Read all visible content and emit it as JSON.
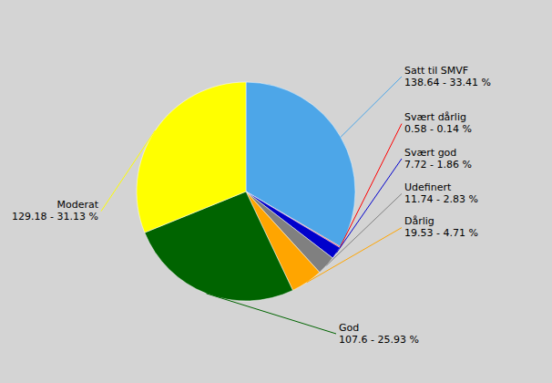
{
  "chart_data": {
    "type": "pie",
    "categories": [
      "Satt til SMVF\n138.64 - 33.41 %",
      "Svært dårlig\n0.58 - 0.14 %",
      "Svært god\n7.72 - 1.86 %",
      "Udefinert\n11.74 - 2.83 %",
      "Dårlig\n19.53 - 4.71 %",
      "God\n107.6 - 25.93 %",
      "Moderat\n129.18 - 31.13 %"
    ],
    "values": [
      138.64,
      0.58,
      7.72,
      11.74,
      19.53,
      107.6,
      129.18
    ],
    "colors": [
      "#4da6e8",
      "#ff0000",
      "#0000cc",
      "#808080",
      "#ffa500",
      "#006400",
      "#ffff00"
    ]
  }
}
